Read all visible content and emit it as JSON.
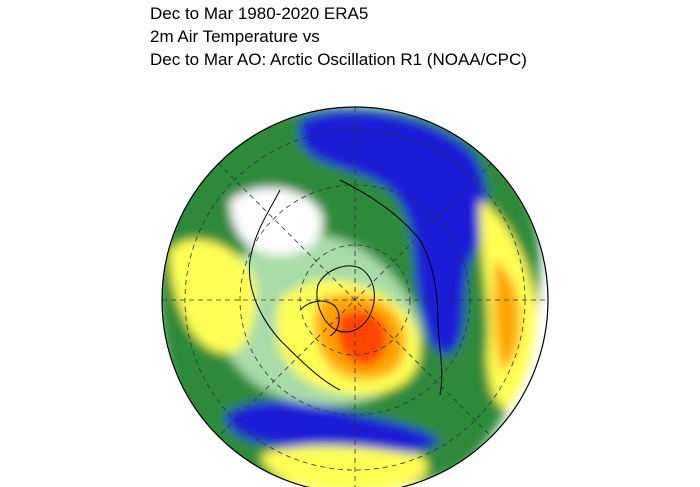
{
  "title": {
    "line1": "Dec to Mar 1980-2020 ERA5",
    "line2": "2m Air Temperature vs",
    "line3": "Dec to Mar AO: Arctic Oscillation R1 (NOAA/CPC)"
  },
  "map": {
    "projection": "north-polar-stereographic",
    "colors": {
      "strong_negative": "#1a1ad6",
      "negative": "#2a7a2a",
      "weak_negative": "#a8dca8",
      "neutral": "#ffffff",
      "weak_positive": "#ffff66",
      "positive": "#ffa500",
      "strong_positive": "#ff4400",
      "coastline": "#000000",
      "graticule": "#333333"
    }
  }
}
